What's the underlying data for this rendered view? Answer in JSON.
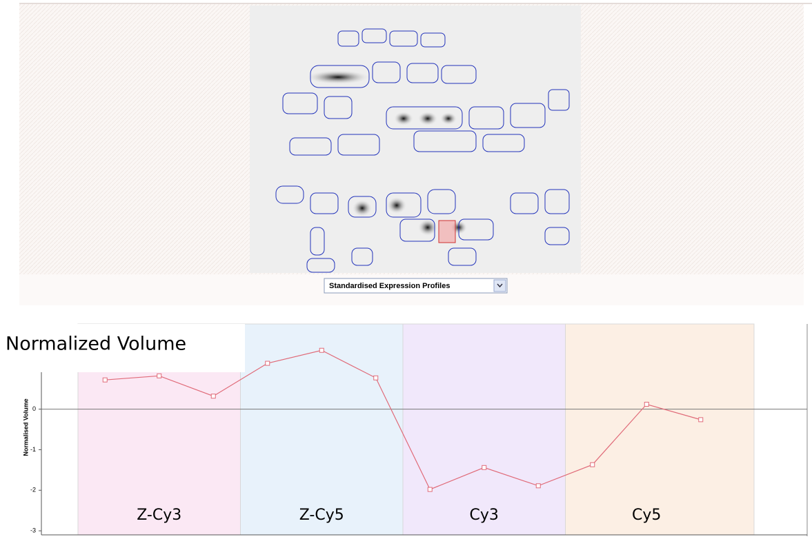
{
  "selector": {
    "label": "Standardised Expression Profiles"
  },
  "chart_data": {
    "type": "line",
    "title": "Normalized Volume",
    "y_label": "Normalised Volume",
    "categories": [
      null,
      null,
      null,
      null,
      null,
      null,
      null,
      null,
      null,
      null,
      null,
      null
    ],
    "series": [
      {
        "name": null,
        "color": "#e06a78",
        "values": [
          0.72,
          0.82,
          0.32,
          1.13,
          1.45,
          0.77,
          -1.98,
          -1.44,
          -1.89,
          -1.37,
          0.12,
          -0.26
        ]
      }
    ],
    "groups": [
      {
        "label": "Z-Cy3",
        "color": "#fbe8f4"
      },
      {
        "label": "Z-Cy5",
        "color": "#e8f2fb"
      },
      {
        "label": "Cy3",
        "color": "#f1e8fb"
      },
      {
        "label": "Cy5",
        "color": "#fcefe4"
      }
    ],
    "ylim": [
      -3.1,
      2.1
    ],
    "yticks": [
      -3,
      -2,
      -1,
      0
    ]
  }
}
